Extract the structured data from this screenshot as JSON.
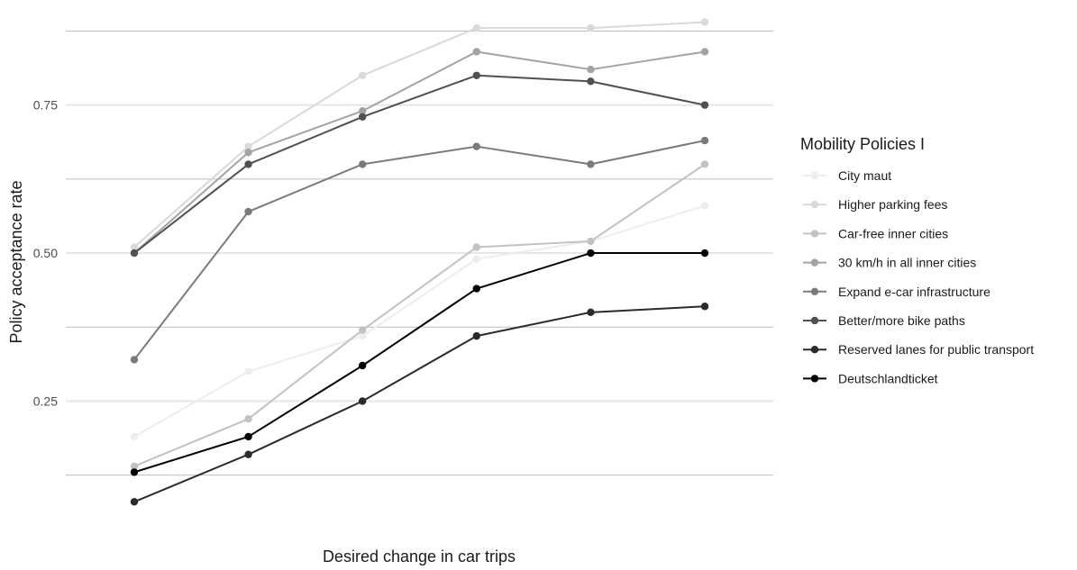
{
  "chart_data": {
    "type": "line",
    "xlabel": "Desired change in car trips",
    "ylabel": "Policy acceptance rate",
    "x": [
      1,
      2,
      3,
      4,
      5,
      6
    ],
    "xlim": [
      0.4,
      6.6
    ],
    "ylim": [
      0.05,
      0.9
    ],
    "y_ticks": [
      {
        "value": 0.25,
        "label": "0.25"
      },
      {
        "value": 0.5,
        "label": "0.50"
      },
      {
        "value": 0.75,
        "label": "0.75"
      }
    ],
    "y_minor_gridlines": [
      0.125,
      0.375,
      0.625,
      0.875
    ],
    "grid": true,
    "legend": {
      "title": "Mobility Policies I",
      "position": "right"
    },
    "series": [
      {
        "name": "City maut",
        "color": "#ededed",
        "values": [
          0.19,
          0.3,
          0.36,
          0.49,
          0.52,
          0.58
        ]
      },
      {
        "name": "Higher parking fees",
        "color": "#d9d9d9",
        "values": [
          0.51,
          0.68,
          0.8,
          0.88,
          0.88,
          0.89
        ]
      },
      {
        "name": "Car-free inner cities",
        "color": "#c2c2c2",
        "values": [
          0.14,
          0.22,
          0.37,
          0.51,
          0.52,
          0.65
        ]
      },
      {
        "name": "30 km/h in all inner cities",
        "color": "#a3a3a3",
        "values": [
          0.5,
          0.67,
          0.74,
          0.84,
          0.81,
          0.84
        ]
      },
      {
        "name": "Expand e-car infrastructure",
        "color": "#7a7a7a",
        "values": [
          0.32,
          0.57,
          0.65,
          0.68,
          0.65,
          0.69
        ]
      },
      {
        "name": "Better/more bike paths",
        "color": "#505050",
        "values": [
          0.5,
          0.65,
          0.73,
          0.8,
          0.79,
          0.75
        ]
      },
      {
        "name": "Reserved lanes for public transport",
        "color": "#2b2b2b",
        "values": [
          0.08,
          0.16,
          0.25,
          0.36,
          0.4,
          0.41
        ]
      },
      {
        "name": "Deutschlandticket",
        "color": "#000000",
        "values": [
          0.13,
          0.19,
          0.31,
          0.44,
          0.5,
          0.5
        ]
      }
    ]
  }
}
